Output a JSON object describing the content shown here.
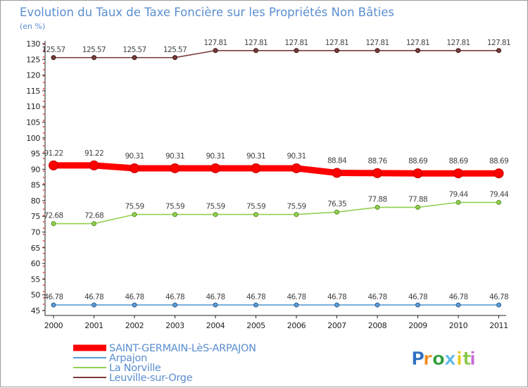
{
  "chart_data": {
    "type": "line",
    "title": "Evolution du Taux de Taxe Foncière sur les Propriétés Non Bâties",
    "ylabel": "(en %)",
    "xlabel": "",
    "ylim": [
      45,
      130
    ],
    "yticks": [
      45,
      50,
      55,
      60,
      65,
      70,
      75,
      80,
      85,
      90,
      95,
      100,
      105,
      110,
      115,
      120,
      125,
      130
    ],
    "categories": [
      "2000",
      "2001",
      "2002",
      "2003",
      "2004",
      "2005",
      "2006",
      "2007",
      "2008",
      "2009",
      "2010",
      "2011"
    ],
    "series": [
      {
        "name": "SAINT-GERMAIN-LèS-ARPAJON",
        "color": "#ff0000",
        "values": [
          91.22,
          91.22,
          90.31,
          90.31,
          90.31,
          90.31,
          90.31,
          88.84,
          88.76,
          88.69,
          88.69,
          88.69
        ],
        "labels": [
          "91.22",
          "91.22",
          "90.31",
          "90.31",
          "90.31",
          "90.31",
          "90.31",
          "88.84",
          "88.76",
          "88.69",
          "88.69",
          "88.69"
        ]
      },
      {
        "name": "Arpajon",
        "color": "#5b9bd5",
        "values": [
          46.78,
          46.78,
          46.78,
          46.78,
          46.78,
          46.78,
          46.78,
          46.78,
          46.78,
          46.78,
          46.78,
          46.78
        ],
        "labels": [
          "46.78",
          "46.78",
          "46.78",
          "46.78",
          "46.78",
          "46.78",
          "46.78",
          "46.78",
          "46.78",
          "46.78",
          "46.78",
          "46.78"
        ]
      },
      {
        "name": "La Norville",
        "color": "#92d050",
        "values": [
          72.68,
          72.68,
          75.59,
          75.59,
          75.59,
          75.59,
          75.59,
          76.35,
          77.88,
          77.88,
          79.44,
          79.44
        ],
        "labels": [
          "72.68",
          "72.68",
          "75.59",
          "75.59",
          "75.59",
          "75.59",
          "75.59",
          "76.35",
          "77.88",
          "77.88",
          "79.44",
          "79.44"
        ]
      },
      {
        "name": "Leuville-sur-Orge",
        "color": "#7b3b3b",
        "values": [
          125.57,
          125.57,
          125.57,
          125.57,
          127.81,
          127.81,
          127.81,
          127.81,
          127.81,
          127.81,
          127.81,
          127.81
        ],
        "labels": [
          "125.57",
          "125.57",
          "125.57",
          "125.57",
          "127.81",
          "127.81",
          "127.81",
          "127.81",
          "127.81",
          "127.81",
          "127.81",
          "127.81"
        ]
      }
    ],
    "legend_position": "bottom-left",
    "grid": false
  },
  "branding": {
    "logo_text": "Proxiti",
    "letter_colors": [
      "#2e6fc2",
      "#f08c1c",
      "#2e9d3a",
      "#5fb8e6",
      "#e8c81c",
      "#8bc84a",
      "#c86ad6"
    ]
  }
}
